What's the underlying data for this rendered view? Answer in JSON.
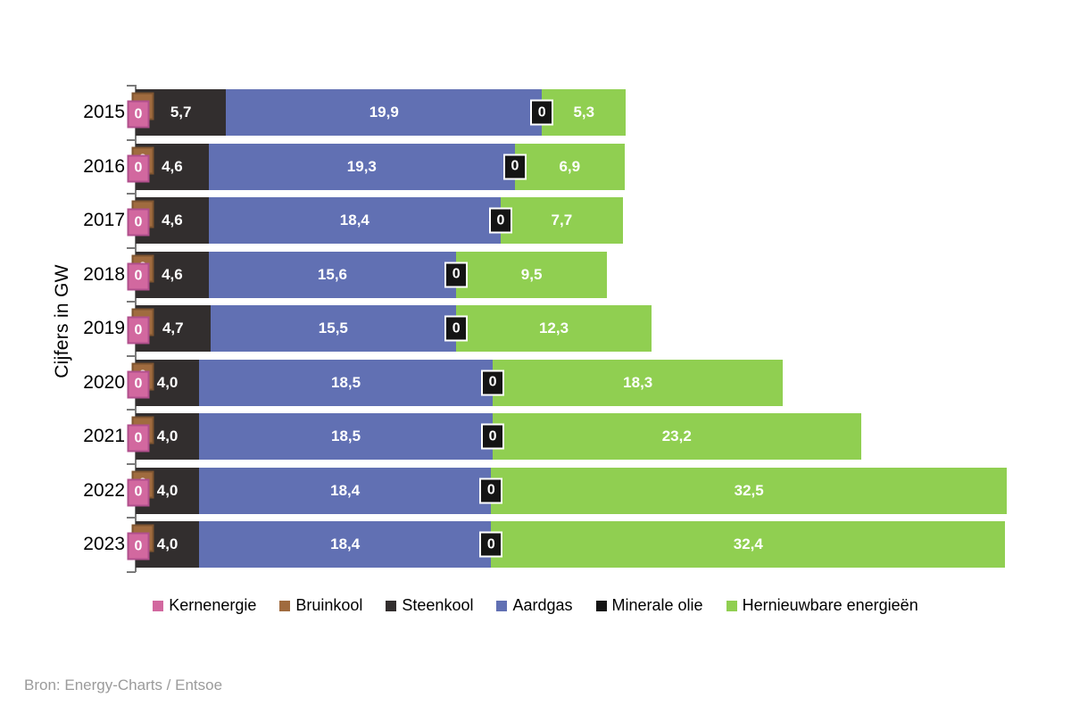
{
  "chart_data": {
    "type": "bar",
    "orientation": "horizontal",
    "stacked": true,
    "title": "",
    "ylabel": "Cijfers in GW",
    "source": "Bron: Energy-Charts / Entsoe",
    "unit": "GW",
    "decimal_separator": ",",
    "zero_label": "0",
    "grid": false,
    "legend_position": "bottom",
    "xlim": [
      0,
      55
    ],
    "categories": [
      "2015",
      "2016",
      "2017",
      "2018",
      "2019",
      "2020",
      "2021",
      "2022",
      "2023"
    ],
    "series": [
      {
        "name": "Kernenergie",
        "color": "#d2689f",
        "values": [
          0,
          0,
          0,
          0,
          0,
          0,
          0,
          0,
          0
        ]
      },
      {
        "name": "Bruinkool",
        "color": "#a06b3f",
        "values": [
          0,
          0,
          0,
          0,
          0,
          0,
          0,
          0,
          0
        ]
      },
      {
        "name": "Steenkool",
        "color": "#322e2e",
        "values": [
          5.7,
          4.6,
          4.6,
          4.6,
          4.7,
          4.0,
          4.0,
          4.0,
          4.0
        ]
      },
      {
        "name": "Aardgas",
        "color": "#6170b3",
        "values": [
          19.9,
          19.3,
          18.4,
          15.6,
          15.5,
          18.5,
          18.5,
          18.4,
          18.4
        ]
      },
      {
        "name": "Minerale olie",
        "color": "#141414",
        "values": [
          0,
          0,
          0,
          0,
          0,
          0,
          0,
          0,
          0
        ]
      },
      {
        "name": "Hernieuwbare energieën",
        "color": "#90cf51",
        "values": [
          5.3,
          6.9,
          7.7,
          9.5,
          12.3,
          18.3,
          23.2,
          32.5,
          32.4
        ]
      }
    ]
  }
}
